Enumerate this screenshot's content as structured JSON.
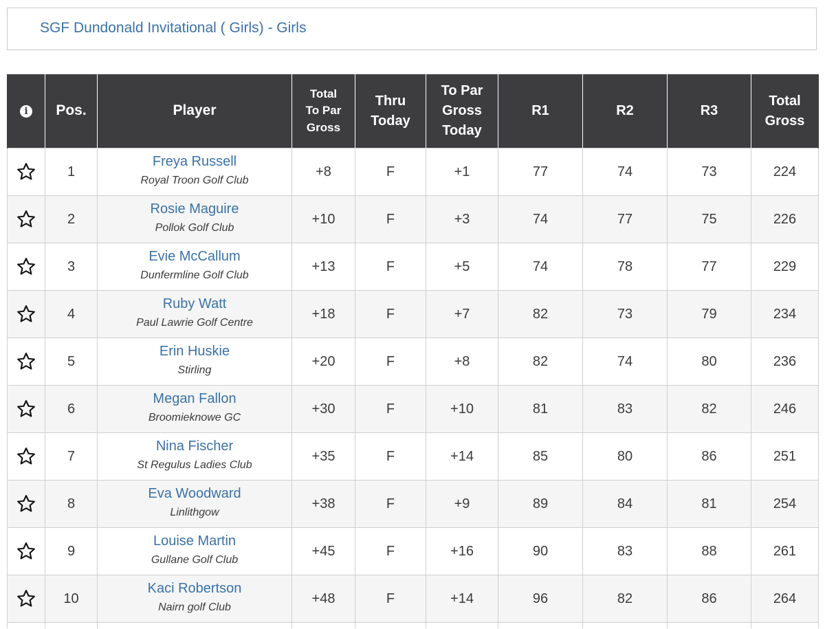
{
  "event": {
    "title": "SGF Dundonald Invitational ( Girls) - Girls"
  },
  "table": {
    "headers": {
      "info_icon": "info-icon",
      "pos": "Pos.",
      "player": "Player",
      "total_to_par_gross": [
        "Total",
        "To Par",
        "Gross"
      ],
      "thru_today": [
        "Thru",
        "Today"
      ],
      "to_par_gross_today": [
        "To Par",
        "Gross",
        "Today"
      ],
      "r1": "R1",
      "r2": "R2",
      "r3": "R3",
      "total_gross": [
        "Total",
        "Gross"
      ]
    },
    "favorite_icon": "star-outline-icon",
    "rows": [
      {
        "pos": "1",
        "name": "Freya Russell",
        "club": "Royal Troon Golf Club",
        "total_to_par": "+8",
        "thru": "F",
        "to_par_today": "+1",
        "r1": "77",
        "r2": "74",
        "r3": "73",
        "total": "224"
      },
      {
        "pos": "2",
        "name": "Rosie Maguire",
        "club": "Pollok Golf Club",
        "total_to_par": "+10",
        "thru": "F",
        "to_par_today": "+3",
        "r1": "74",
        "r2": "77",
        "r3": "75",
        "total": "226"
      },
      {
        "pos": "3",
        "name": "Evie McCallum",
        "club": "Dunfermline Golf Club",
        "total_to_par": "+13",
        "thru": "F",
        "to_par_today": "+5",
        "r1": "74",
        "r2": "78",
        "r3": "77",
        "total": "229"
      },
      {
        "pos": "4",
        "name": "Ruby Watt",
        "club": "Paul Lawrie Golf Centre",
        "total_to_par": "+18",
        "thru": "F",
        "to_par_today": "+7",
        "r1": "82",
        "r2": "73",
        "r3": "79",
        "total": "234"
      },
      {
        "pos": "5",
        "name": "Erin Huskie",
        "club": "Stirling",
        "total_to_par": "+20",
        "thru": "F",
        "to_par_today": "+8",
        "r1": "82",
        "r2": "74",
        "r3": "80",
        "total": "236"
      },
      {
        "pos": "6",
        "name": "Megan Fallon",
        "club": "Broomieknowe GC",
        "total_to_par": "+30",
        "thru": "F",
        "to_par_today": "+10",
        "r1": "81",
        "r2": "83",
        "r3": "82",
        "total": "246"
      },
      {
        "pos": "7",
        "name": "Nina Fischer",
        "club": "St Regulus Ladies Club",
        "total_to_par": "+35",
        "thru": "F",
        "to_par_today": "+14",
        "r1": "85",
        "r2": "80",
        "r3": "86",
        "total": "251"
      },
      {
        "pos": "8",
        "name": "Eva Woodward",
        "club": "Linlithgow",
        "total_to_par": "+38",
        "thru": "F",
        "to_par_today": "+9",
        "r1": "89",
        "r2": "84",
        "r3": "81",
        "total": "254"
      },
      {
        "pos": "9",
        "name": "Louise Martin",
        "club": "Gullane Golf Club",
        "total_to_par": "+45",
        "thru": "F",
        "to_par_today": "+16",
        "r1": "90",
        "r2": "83",
        "r3": "88",
        "total": "261"
      },
      {
        "pos": "10",
        "name": "Kaci Robertson",
        "club": "Nairn golf Club",
        "total_to_par": "+48",
        "thru": "F",
        "to_par_today": "+14",
        "r1": "96",
        "r2": "82",
        "r3": "86",
        "total": "264"
      }
    ]
  },
  "colors": {
    "header_bg": "#3d3d40",
    "link": "#3a72a8",
    "row_alt_bg": "#f5f5f5",
    "border": "#cfcfcf"
  }
}
